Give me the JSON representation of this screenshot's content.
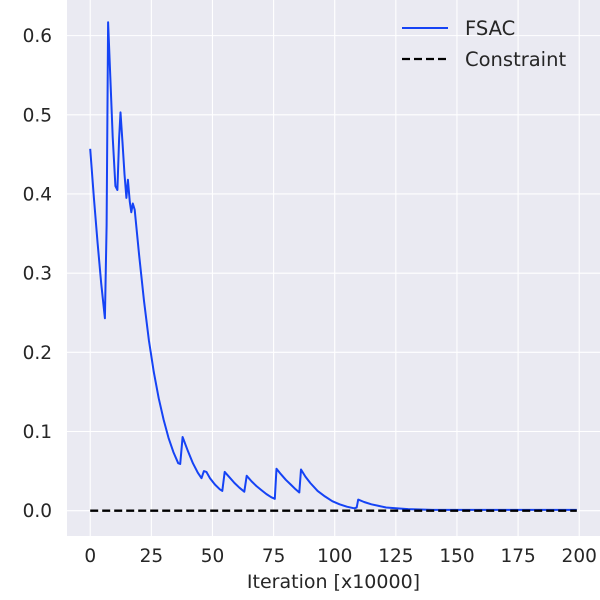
{
  "chart_data": {
    "type": "line",
    "title": "",
    "xlabel": "Iteration [x10000]",
    "ylabel": "",
    "xlim": [
      -9.5,
      208.5
    ],
    "ylim": [
      -0.032,
      0.645
    ],
    "xticks": [
      0,
      25,
      50,
      75,
      100,
      125,
      150,
      175,
      200
    ],
    "xtick_labels": [
      "0",
      "25",
      "50",
      "75",
      "100",
      "125",
      "150",
      "175",
      "200"
    ],
    "yticks": [
      0.0,
      0.1,
      0.2,
      0.3,
      0.4,
      0.5,
      0.6
    ],
    "ytick_labels": [
      "0.0",
      "0.1",
      "0.2",
      "0.3",
      "0.4",
      "0.5",
      "0.6"
    ],
    "grid": true,
    "legend_position": "top-right",
    "background": "#eaeaf2",
    "series": [
      {
        "name": "FSAC",
        "color": "#1543f5",
        "style": "solid",
        "x": [
          0,
          1.5,
          3,
          4.5,
          6,
          6.7,
          7.3,
          8.2,
          9.2,
          10.3,
          11.1,
          11.8,
          12.4,
          13.2,
          14.0,
          14.8,
          15.4,
          16.2,
          16.8,
          17.4,
          18.2,
          20,
          22,
          24,
          26,
          28,
          30,
          32,
          34,
          36,
          36.8,
          37.8,
          40,
          42,
          44,
          45.5,
          46.5,
          47.5,
          49,
          51,
          53,
          54,
          55,
          57,
          59,
          61,
          63,
          64,
          66,
          68,
          70,
          72,
          74,
          75.5,
          76.2,
          78,
          80,
          82,
          84,
          85.5,
          86.2,
          88,
          90,
          93,
          96,
          99,
          102,
          105,
          108,
          109,
          109.6,
          112,
          115,
          118,
          121,
          125,
          130,
          135,
          140,
          150,
          160,
          170,
          180,
          190,
          199
        ],
        "y": [
          0.457,
          0.395,
          0.338,
          0.287,
          0.243,
          0.36,
          0.617,
          0.548,
          0.472,
          0.41,
          0.405,
          0.47,
          0.503,
          0.465,
          0.425,
          0.395,
          0.418,
          0.39,
          0.377,
          0.388,
          0.38,
          0.323,
          0.265,
          0.215,
          0.175,
          0.142,
          0.115,
          0.092,
          0.074,
          0.06,
          0.059,
          0.093,
          0.075,
          0.06,
          0.048,
          0.041,
          0.05,
          0.049,
          0.041,
          0.033,
          0.027,
          0.025,
          0.049,
          0.042,
          0.035,
          0.029,
          0.024,
          0.044,
          0.037,
          0.031,
          0.026,
          0.021,
          0.017,
          0.015,
          0.053,
          0.046,
          0.039,
          0.033,
          0.027,
          0.023,
          0.052,
          0.043,
          0.035,
          0.025,
          0.018,
          0.012,
          0.008,
          0.005,
          0.003,
          0.004,
          0.014,
          0.011,
          0.008,
          0.006,
          0.004,
          0.003,
          0.002,
          0.0015,
          0.001,
          0.001,
          0.001,
          0.001,
          0.001,
          0.001,
          0.001
        ]
      },
      {
        "name": "Constraint",
        "color": "#000000",
        "style": "dashed",
        "x": [
          0,
          199
        ],
        "y": [
          0,
          0
        ]
      }
    ]
  }
}
